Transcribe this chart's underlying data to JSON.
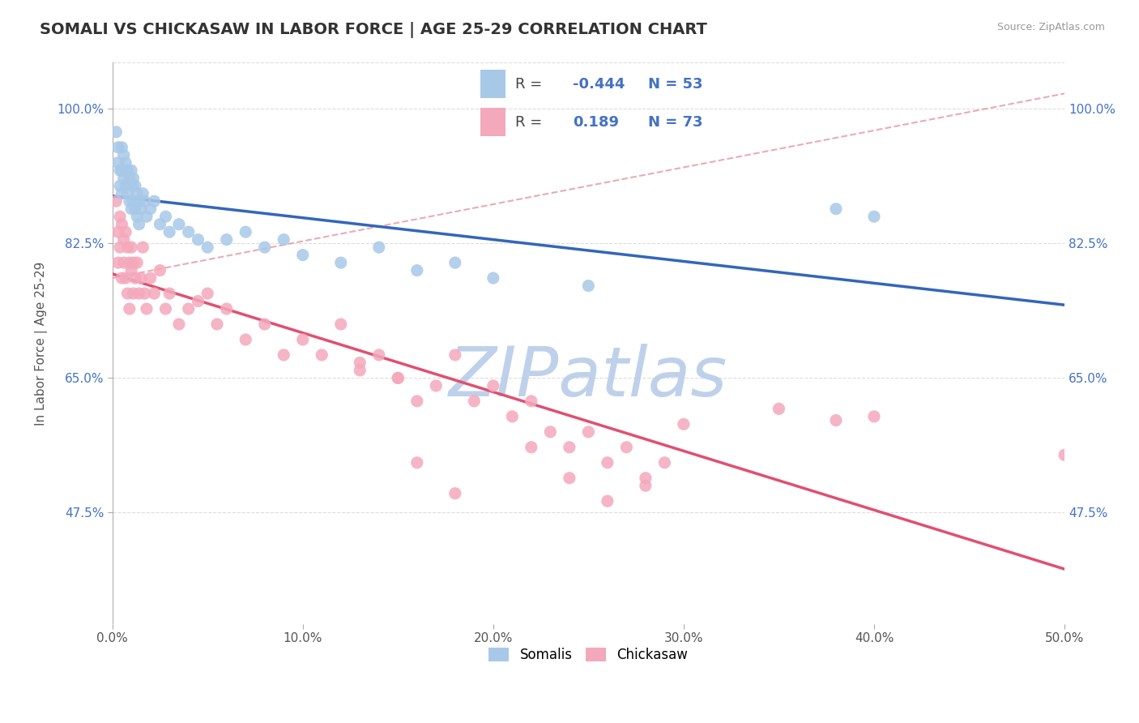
{
  "title": "SOMALI VS CHICKASAW IN LABOR FORCE | AGE 25-29 CORRELATION CHART",
  "source_text": "Source: ZipAtlas.com",
  "ylabel": "In Labor Force | Age 25-29",
  "xlim": [
    0.0,
    0.5
  ],
  "ylim": [
    0.33,
    1.06
  ],
  "xtick_labels": [
    "0.0%",
    "",
    "",
    "",
    "",
    "",
    "",
    "",
    "",
    "",
    "10.0%",
    "",
    "",
    "",
    "",
    "",
    "",
    "",
    "",
    "",
    "20.0%",
    "",
    "",
    "",
    "",
    "",
    "",
    "",
    "",
    "",
    "30.0%",
    "",
    "",
    "",
    "",
    "",
    "",
    "",
    "",
    "",
    "40.0%",
    "",
    "",
    "",
    "",
    "",
    "",
    "",
    "",
    "",
    "50.0%"
  ],
  "xtick_vals": [
    0.0,
    0.01,
    0.02,
    0.03,
    0.04,
    0.05,
    0.06,
    0.07,
    0.08,
    0.09,
    0.1,
    0.11,
    0.12,
    0.13,
    0.14,
    0.15,
    0.16,
    0.17,
    0.18,
    0.19,
    0.2,
    0.21,
    0.22,
    0.23,
    0.24,
    0.25,
    0.26,
    0.27,
    0.28,
    0.29,
    0.3,
    0.31,
    0.32,
    0.33,
    0.34,
    0.35,
    0.36,
    0.37,
    0.38,
    0.39,
    0.4,
    0.41,
    0.42,
    0.43,
    0.44,
    0.45,
    0.46,
    0.47,
    0.48,
    0.49,
    0.5
  ],
  "xtick_major": [
    0.0,
    0.1,
    0.2,
    0.3,
    0.4,
    0.5
  ],
  "xtick_major_labels": [
    "0.0%",
    "10.0%",
    "20.0%",
    "30.0%",
    "40.0%",
    "50.0%"
  ],
  "ytick_labels": [
    "47.5%",
    "65.0%",
    "82.5%",
    "100.0%"
  ],
  "ytick_vals": [
    0.475,
    0.65,
    0.825,
    1.0
  ],
  "somali_color": "#A8C8E8",
  "chickasaw_color": "#F4A8BC",
  "somali_R": -0.444,
  "somali_N": 53,
  "chickasaw_R": 0.189,
  "chickasaw_N": 73,
  "trend_blue": "#3366BB",
  "trend_pink": "#E05070",
  "trend_dashed_color": "#E08898",
  "watermark": "ZIPatlas",
  "watermark_color": "#C8D8F0",
  "grid_color": "#DDDDDD",
  "somali_x": [
    0.002,
    0.003,
    0.003,
    0.004,
    0.004,
    0.005,
    0.005,
    0.005,
    0.006,
    0.006,
    0.007,
    0.007,
    0.008,
    0.008,
    0.009,
    0.009,
    0.01,
    0.01,
    0.01,
    0.011,
    0.011,
    0.012,
    0.012,
    0.013,
    0.013,
    0.014,
    0.014,
    0.015,
    0.016,
    0.017,
    0.018,
    0.02,
    0.022,
    0.025,
    0.028,
    0.03,
    0.035,
    0.04,
    0.045,
    0.05,
    0.06,
    0.07,
    0.08,
    0.09,
    0.1,
    0.12,
    0.14,
    0.16,
    0.18,
    0.2,
    0.25,
    0.38,
    0.4
  ],
  "somali_y": [
    0.97,
    0.95,
    0.93,
    0.92,
    0.9,
    0.95,
    0.92,
    0.89,
    0.94,
    0.91,
    0.93,
    0.9,
    0.92,
    0.89,
    0.91,
    0.88,
    0.92,
    0.9,
    0.87,
    0.91,
    0.88,
    0.9,
    0.87,
    0.89,
    0.86,
    0.88,
    0.85,
    0.87,
    0.89,
    0.88,
    0.86,
    0.87,
    0.88,
    0.85,
    0.86,
    0.84,
    0.85,
    0.84,
    0.83,
    0.82,
    0.83,
    0.84,
    0.82,
    0.83,
    0.81,
    0.8,
    0.82,
    0.79,
    0.8,
    0.78,
    0.77,
    0.87,
    0.86
  ],
  "chickasaw_x": [
    0.002,
    0.003,
    0.003,
    0.004,
    0.004,
    0.005,
    0.005,
    0.006,
    0.006,
    0.007,
    0.007,
    0.008,
    0.008,
    0.009,
    0.009,
    0.01,
    0.01,
    0.011,
    0.011,
    0.012,
    0.013,
    0.014,
    0.015,
    0.016,
    0.017,
    0.018,
    0.02,
    0.022,
    0.025,
    0.028,
    0.03,
    0.035,
    0.04,
    0.045,
    0.05,
    0.055,
    0.06,
    0.07,
    0.08,
    0.09,
    0.1,
    0.11,
    0.12,
    0.13,
    0.14,
    0.15,
    0.16,
    0.17,
    0.18,
    0.19,
    0.2,
    0.21,
    0.22,
    0.23,
    0.24,
    0.25,
    0.26,
    0.27,
    0.28,
    0.29,
    0.3,
    0.35,
    0.38,
    0.4,
    0.16,
    0.18,
    0.22,
    0.24,
    0.26,
    0.28,
    0.13,
    0.15,
    0.5
  ],
  "chickasaw_y": [
    0.88,
    0.84,
    0.8,
    0.86,
    0.82,
    0.85,
    0.78,
    0.83,
    0.8,
    0.84,
    0.78,
    0.82,
    0.76,
    0.8,
    0.74,
    0.82,
    0.79,
    0.8,
    0.76,
    0.78,
    0.8,
    0.76,
    0.78,
    0.82,
    0.76,
    0.74,
    0.78,
    0.76,
    0.79,
    0.74,
    0.76,
    0.72,
    0.74,
    0.75,
    0.76,
    0.72,
    0.74,
    0.7,
    0.72,
    0.68,
    0.7,
    0.68,
    0.72,
    0.66,
    0.68,
    0.65,
    0.62,
    0.64,
    0.68,
    0.62,
    0.64,
    0.6,
    0.62,
    0.58,
    0.56,
    0.58,
    0.54,
    0.56,
    0.52,
    0.54,
    0.59,
    0.61,
    0.595,
    0.6,
    0.54,
    0.5,
    0.56,
    0.52,
    0.49,
    0.51,
    0.67,
    0.65,
    0.55
  ]
}
